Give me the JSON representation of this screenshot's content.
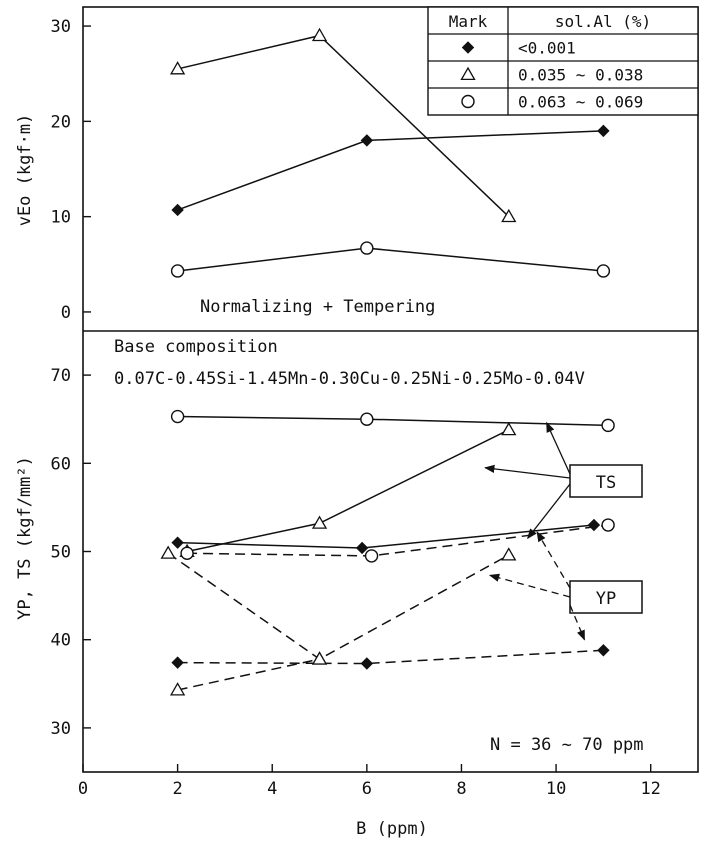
{
  "chart_data": [
    {
      "type": "line",
      "panel": "top",
      "ylabel": "vEo (kgf·m)",
      "ylim": [
        -2,
        32
      ],
      "yticks": [
        "0",
        "10",
        "20",
        "30"
      ],
      "annotation": "Normalizing + Tempering",
      "legend": {
        "placement": "top-right",
        "header": [
          "Mark",
          "sol.Al (%)"
        ],
        "entries": [
          {
            "marker": "diamond",
            "label": "<0.001"
          },
          {
            "marker": "triangle",
            "label": "0.035 ~ 0.038"
          },
          {
            "marker": "circle",
            "label": "0.063 ~ 0.069"
          }
        ]
      },
      "series": [
        {
          "marker": "diamond",
          "dash": "solid",
          "points": [
            [
              2,
              10.7
            ],
            [
              6,
              18
            ],
            [
              11,
              19
            ]
          ]
        },
        {
          "marker": "triangle",
          "dash": "solid",
          "points": [
            [
              2,
              25.5
            ],
            [
              5,
              29
            ],
            [
              9,
              10
            ]
          ]
        },
        {
          "marker": "circle",
          "dash": "solid",
          "points": [
            [
              2,
              4.3
            ],
            [
              6,
              6.7
            ],
            [
              11,
              4.3
            ]
          ]
        }
      ]
    },
    {
      "type": "line",
      "panel": "bottom",
      "ylabel": "YP, TS (kgf/mm²)",
      "xlabel": "B (ppm)",
      "xlim": [
        0,
        13
      ],
      "xticks": [
        "0",
        "2",
        "4",
        "6",
        "8",
        "10",
        "12"
      ],
      "ylim": [
        25,
        75
      ],
      "yticks": [
        "30",
        "40",
        "50",
        "60",
        "70"
      ],
      "annotation_title": "Base composition",
      "annotation_formula": "0.07C-0.45Si-1.45Mn-0.30Cu-0.25Ni-0.25Mo-0.04V",
      "annotation_n": "N = 36 ~ 70 ppm",
      "label_ts": "TS",
      "label_yp": "YP",
      "series": [
        {
          "marker": "circle",
          "dash": "solid",
          "kind": "TS",
          "points": [
            [
              2,
              65.3
            ],
            [
              6,
              65
            ],
            [
              11.1,
              64.3
            ]
          ]
        },
        {
          "marker": "triangle",
          "dash": "solid",
          "kind": "TS",
          "points": [
            [
              2.2,
              50
            ],
            [
              5,
              53.2
            ],
            [
              9,
              63.8
            ]
          ]
        },
        {
          "marker": "diamond",
          "dash": "solid",
          "kind": "TS",
          "points": [
            [
              2,
              51
            ],
            [
              5.9,
              50.4
            ],
            [
              10.8,
              53
            ]
          ]
        },
        {
          "marker": "circle",
          "dash": "dashed",
          "kind": "YP",
          "points": [
            [
              2.2,
              49.8
            ],
            [
              6.1,
              49.5
            ],
            [
              11.1,
              53
            ]
          ]
        },
        {
          "marker": "triangle",
          "dash": "dashed",
          "kind": "YP",
          "points": [
            [
              1.8,
              49.8
            ],
            [
              5,
              37.8
            ],
            [
              9,
              49.6
            ]
          ]
        },
        {
          "marker": "diamond",
          "dash": "dashed",
          "kind": "YP",
          "points": [
            [
              2,
              37.4
            ],
            [
              6,
              37.3
            ],
            [
              11,
              38.8
            ]
          ]
        },
        {
          "marker": "triangle",
          "dash": "dashed",
          "kind": "YP",
          "points": [
            [
              2,
              34.3
            ],
            [
              5,
              37.8
            ]
          ]
        }
      ]
    }
  ]
}
